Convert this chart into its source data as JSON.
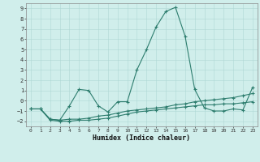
{
  "x": [
    0,
    1,
    2,
    3,
    4,
    5,
    6,
    7,
    8,
    9,
    10,
    11,
    12,
    13,
    14,
    15,
    16,
    17,
    18,
    19,
    20,
    21,
    22,
    23
  ],
  "line1": [
    -0.8,
    -0.8,
    -1.8,
    -1.9,
    -0.5,
    1.1,
    1.0,
    -0.5,
    -1.1,
    -0.1,
    -0.1,
    3.0,
    5.0,
    7.2,
    8.7,
    9.1,
    6.3,
    1.1,
    -0.7,
    -1.0,
    -1.0,
    -0.8,
    -0.9,
    1.3
  ],
  "line2": [
    -0.8,
    -0.8,
    -1.8,
    -1.9,
    -1.8,
    -1.8,
    -1.7,
    -1.5,
    -1.4,
    -1.2,
    -1.0,
    -0.9,
    -0.8,
    -0.7,
    -0.6,
    -0.4,
    -0.3,
    -0.1,
    0.0,
    0.1,
    0.2,
    0.3,
    0.5,
    0.7
  ],
  "line3": [
    -0.8,
    -0.8,
    -1.9,
    -2.0,
    -2.0,
    -1.9,
    -1.9,
    -1.8,
    -1.7,
    -1.5,
    -1.3,
    -1.1,
    -1.0,
    -0.9,
    -0.8,
    -0.7,
    -0.6,
    -0.5,
    -0.4,
    -0.4,
    -0.3,
    -0.3,
    -0.2,
    -0.1
  ],
  "line_color": "#2d7d6e",
  "bg_color": "#d0eeeb",
  "grid_color": "#aed8d4",
  "xlabel": "Humidex (Indice chaleur)",
  "ylim": [
    -2.5,
    9.5
  ],
  "xlim": [
    -0.5,
    23.5
  ],
  "yticks": [
    -2,
    -1,
    0,
    1,
    2,
    3,
    4,
    5,
    6,
    7,
    8,
    9
  ],
  "xticks": [
    0,
    1,
    2,
    3,
    4,
    5,
    6,
    7,
    8,
    9,
    10,
    11,
    12,
    13,
    14,
    15,
    16,
    17,
    18,
    19,
    20,
    21,
    22,
    23
  ],
  "xlabel_fontsize": 6.0,
  "tick_fontsize": 4.5,
  "linewidth": 0.8,
  "markersize": 3.0
}
